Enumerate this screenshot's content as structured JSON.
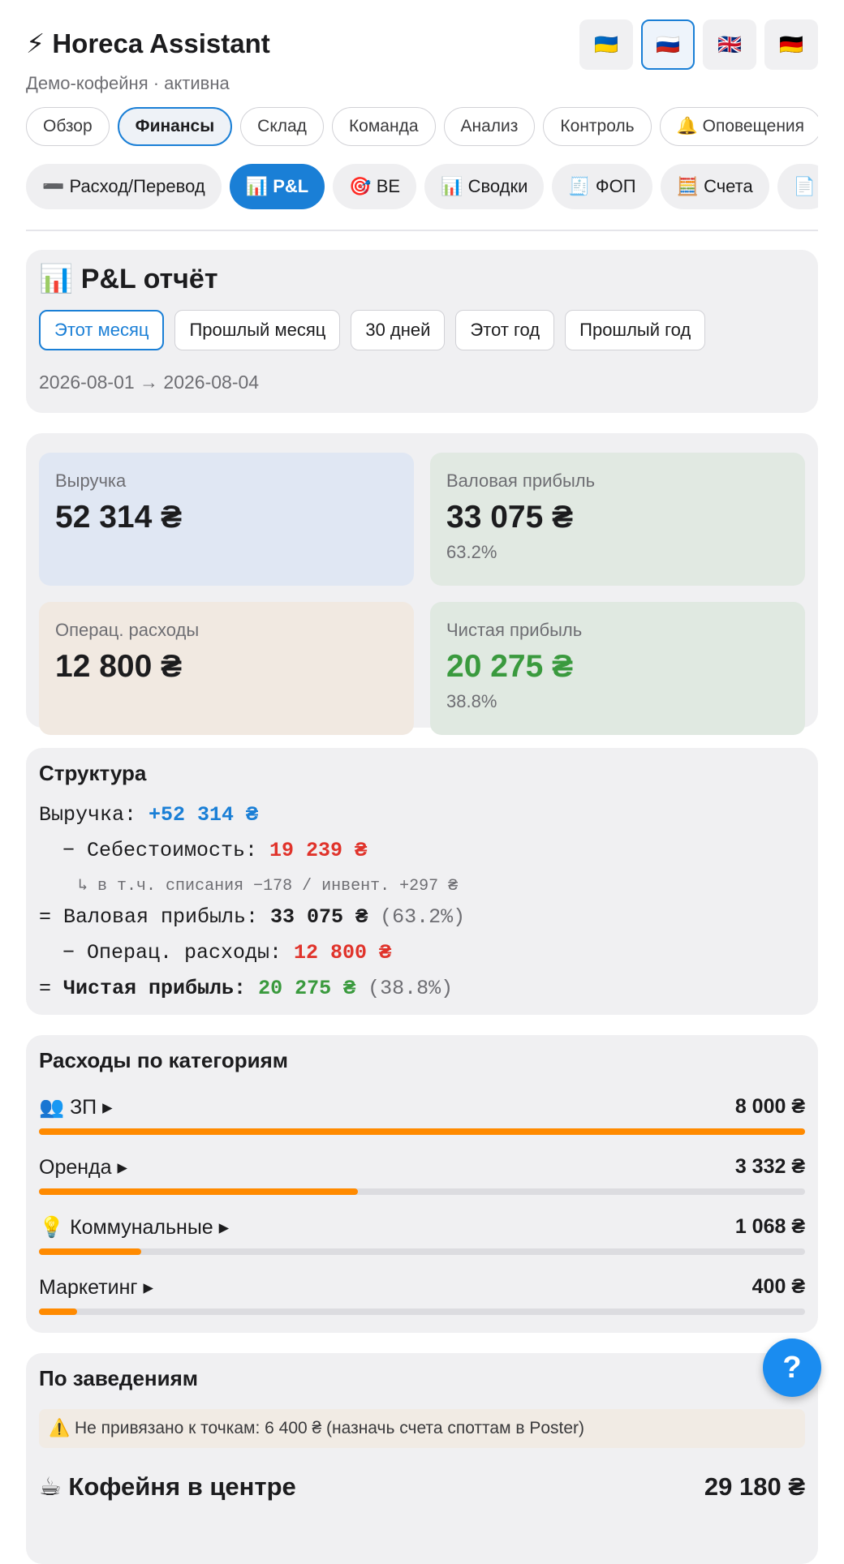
{
  "header": {
    "title": "⚡ Horeca Assistant",
    "subtitle": "Демо-кофейня · активна",
    "languages": [
      "🇺🇦",
      "🇷🇺",
      "🇬🇧",
      "🇩🇪"
    ]
  },
  "nav_tabs": [
    "Обзор",
    "Финансы",
    "Склад",
    "Команда",
    "Анализ",
    "Контроль",
    "🔔 Оповещения"
  ],
  "sub_tabs": [
    "➖ Расход/Перевод",
    "📊 P&L",
    "🎯 BE",
    "📊 Сводки",
    "🧾 ФОП",
    "🧮 Счета",
    "📄"
  ],
  "report": {
    "title": "📊 P&L отчёт",
    "periods": [
      "Этот месяц",
      "Прошлый месяц",
      "30 дней",
      "Этот год",
      "Прошлый год"
    ],
    "date_range": "2026-08-01 → 2026-08-04"
  },
  "kpis": [
    {
      "label": "Выручка",
      "value": "52 314 ₴"
    },
    {
      "label": "Валовая прибыль",
      "value": "33 075 ₴",
      "share": "63.2%"
    },
    {
      "label": "Операц. расходы",
      "value": "12 800 ₴"
    },
    {
      "label": "Чистая прибыль",
      "value": "20 275 ₴",
      "share": "38.8%"
    }
  ],
  "structure": {
    "title": "Структура",
    "lines": [
      [
        "Выручка: ",
        "+52 314 ₴"
      ],
      [
        "− Себестоимость: ",
        "19 239 ₴"
      ],
      [
        "↳ в т.ч. списания −178 / инвент. +297 ₴"
      ],
      [
        "= Валовая прибыль: ",
        "33 075 ₴",
        " (63.2%)"
      ],
      [
        "− Операц. расходы: ",
        "12 800 ₴"
      ],
      [
        "= ",
        "Чистая прибыль: ",
        "20 275 ₴",
        " (38.8%)"
      ]
    ]
  },
  "expenses": {
    "title": "Расходы по категориям",
    "items": [
      {
        "label": "👥 ЗП ▸",
        "amount": 8000,
        "amount_label": "8 000 ₴"
      },
      {
        "label": "Оренда ▸",
        "amount": 3332,
        "amount_label": "3 332 ₴"
      },
      {
        "label": "💡 Коммунальные ▸",
        "amount": 1068,
        "amount_label": "1 068 ₴"
      },
      {
        "label": "Маркетинг ▸",
        "amount": 400,
        "amount_label": "400 ₴"
      }
    ]
  },
  "venues": {
    "title": "По заведениям",
    "warning": "⚠️ Не привязано к точкам: 6 400 ₴ (назначь счета споттам в Poster)",
    "items": [
      {
        "name": "☕ Кофейня в центре",
        "amount": "29 180 ₴"
      }
    ]
  },
  "help": "?"
}
